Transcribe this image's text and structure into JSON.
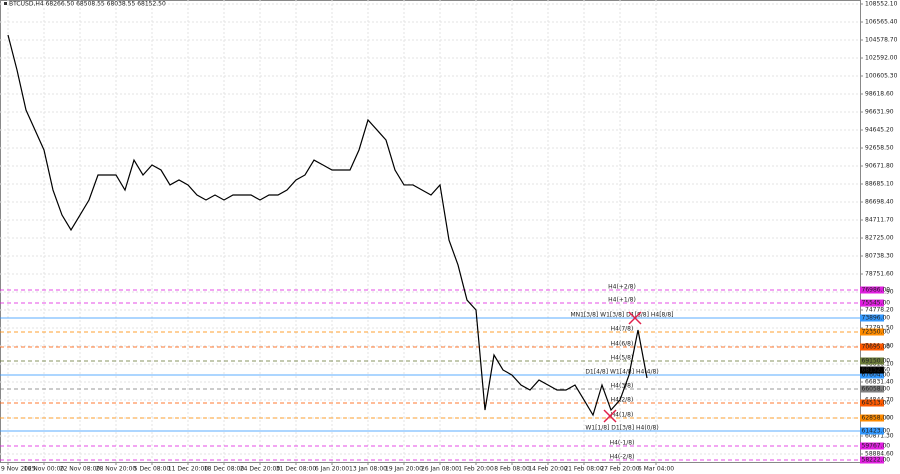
{
  "chart_data": {
    "type": "line",
    "title": "BTCUSD,H4 68266.50 68508.55 68038.55 68152.50",
    "categories": [
      "9 Nov 2025",
      null,
      null,
      null,
      "16 Nov 00:00",
      null,
      null,
      null,
      "22 Nov 08:00",
      null,
      null,
      null,
      "28 Nov 20:00",
      null,
      null,
      null,
      "5 Dec 08:00",
      null,
      null,
      null,
      "11 Dec 20:00",
      null,
      null,
      null,
      "18 Dec 08:00",
      null,
      null,
      null,
      "24 Dec 20:00",
      null,
      null,
      null,
      "31 Dec 08:00",
      null,
      null,
      null,
      "6 Jan 20:00",
      null,
      null,
      null,
      "13 Jan 08:00",
      null,
      null,
      null,
      "19 Jan 20:00",
      null,
      null,
      null,
      "26 Jan 08:00",
      null,
      null,
      null,
      "1 Feb 20:00",
      null,
      null,
      null,
      "8 Feb 08:00",
      null,
      null,
      null,
      "14 Feb 20:00",
      null,
      null,
      null,
      "21 Feb 08:00",
      null,
      null,
      null,
      "27 Feb 20:00",
      null,
      null,
      null,
      "6 Mar 04:00"
    ],
    "series": [
      {
        "name": "BTCUSD,H4",
        "color": "#000000",
        "values": [
          105130,
          101270,
          96850,
          94650,
          92440,
          88020,
          85260,
          83610,
          85260,
          86920,
          89680,
          89680,
          89680,
          88020,
          91330,
          89680,
          90780,
          90230,
          88580,
          89130,
          88580,
          87470,
          86920,
          87470,
          86920,
          87470,
          87470,
          87470,
          86920,
          87470,
          87470,
          88020,
          89130,
          89680,
          91330,
          90780,
          90230,
          90230,
          90230,
          92440,
          95750,
          94650,
          93540,
          90230,
          88580,
          88580,
          88020,
          87470,
          88580,
          82500,
          79750,
          75880,
          74780,
          63740,
          69810,
          68160,
          67600,
          66500,
          65950,
          67050,
          66500,
          65950,
          65950,
          66500,
          64850,
          63190,
          66500,
          63740,
          64850,
          67600,
          72570,
          67270,
          null
        ]
      }
    ],
    "ylim": [
      58002.7,
      108993.6
    ],
    "yticks": [
      {
        "value": 108552.1,
        "label": "108552.10"
      },
      {
        "value": 106565.4,
        "label": "106565.40"
      },
      {
        "value": 104578.7,
        "label": "104578.70"
      },
      {
        "value": 102592,
        "label": "102592.00"
      },
      {
        "value": 100605.3,
        "label": "100605.30"
      },
      {
        "value": 98618.6,
        "label": "98618.60"
      },
      {
        "value": 96631.9,
        "label": "96631.90"
      },
      {
        "value": 94645.2,
        "label": "94645.20"
      },
      {
        "value": 92658.5,
        "label": "92658.50"
      },
      {
        "value": 90671.8,
        "label": "90671.80"
      },
      {
        "value": 88685.1,
        "label": "88685.10"
      },
      {
        "value": 86698.4,
        "label": "86698.40"
      },
      {
        "value": 84711.7,
        "label": "84711.70"
      },
      {
        "value": 82725,
        "label": "82725.00"
      },
      {
        "value": 80738.3,
        "label": "80738.30"
      },
      {
        "value": 78751.6,
        "label": "78751.60"
      },
      {
        "value": 76764.9,
        "label": "76764.90"
      },
      {
        "value": 74778.2,
        "label": "74778.20"
      },
      {
        "value": 72791.5,
        "label": "72791.50"
      },
      {
        "value": 70804.8,
        "label": "70804.80"
      },
      {
        "value": 68818.1,
        "label": "68818.10"
      },
      {
        "value": 66831.4,
        "label": "66831.40"
      },
      {
        "value": 64844.7,
        "label": "64844.70"
      },
      {
        "value": 62858,
        "label": "62858.00"
      },
      {
        "value": 60871.3,
        "label": "60871.30"
      },
      {
        "value": 58884.6,
        "label": "58884.60"
      }
    ],
    "grid": true,
    "last_price": {
      "value": 68152.5,
      "label": "68152.50",
      "color": "#000000"
    },
    "levels": [
      {
        "label": "H4(+2/8)",
        "price": {
          "value": 76986,
          "label": "76986.00"
        },
        "color": "#e020e0",
        "dashed": true
      },
      {
        "label": "H4(+1/8)",
        "price": {
          "value": 75545,
          "label": "75545.00"
        },
        "color": "#e020e0",
        "dashed": true
      },
      {
        "label": "MN1[3/8] W1[3/8] D1[8/8] H4[8/8]",
        "price": {
          "value": 73896,
          "label": "73896.00"
        },
        "color": "#3399ff",
        "dashed": false
      },
      {
        "label": "H4(7/8)",
        "price": {
          "value": 72350,
          "label": "72350.00"
        },
        "color": "#ff8c00",
        "dashed": true
      },
      {
        "label": "H4(6/8)",
        "price": {
          "value": 70695,
          "label": "70695.00"
        },
        "color": "#ff5a00",
        "dashed": true
      },
      {
        "label": "H4(5/8)",
        "price": {
          "value": 69150,
          "label": "69150.00"
        },
        "color": "#6b7b3a",
        "dashed": true
      },
      {
        "label": "D1[4/8] W1[4/8] H4(4/8)",
        "price": {
          "value": 67604,
          "label": "67604.00"
        },
        "color": "#3399ff",
        "dashed": false
      },
      {
        "label": "H4(3/8)",
        "price": {
          "value": 66058,
          "label": "66058.00"
        },
        "color": "#808080",
        "dashed": true
      },
      {
        "label": "H4(2/8)",
        "price": {
          "value": 64513,
          "label": "64513.00"
        },
        "color": "#ff5a00",
        "dashed": true
      },
      {
        "label": "H4(1/8)",
        "price": {
          "value": 62858,
          "label": "62858.00"
        },
        "color": "#ff8c00",
        "dashed": true
      },
      {
        "label": "W1[1/8] D1[3/8] H4(0/8)",
        "price": {
          "value": 61423,
          "label": "61423.00"
        },
        "color": "#3399ff",
        "dashed": false
      },
      {
        "label": "H4(-1/8)",
        "price": {
          "value": 59767,
          "label": "59767.00"
        },
        "color": "#e020e0",
        "dashed": true
      },
      {
        "label": "H4(-2/8)",
        "price": {
          "value": 58222,
          "label": "58222.00"
        },
        "color": "#e020e0",
        "dashed": true
      }
    ]
  }
}
